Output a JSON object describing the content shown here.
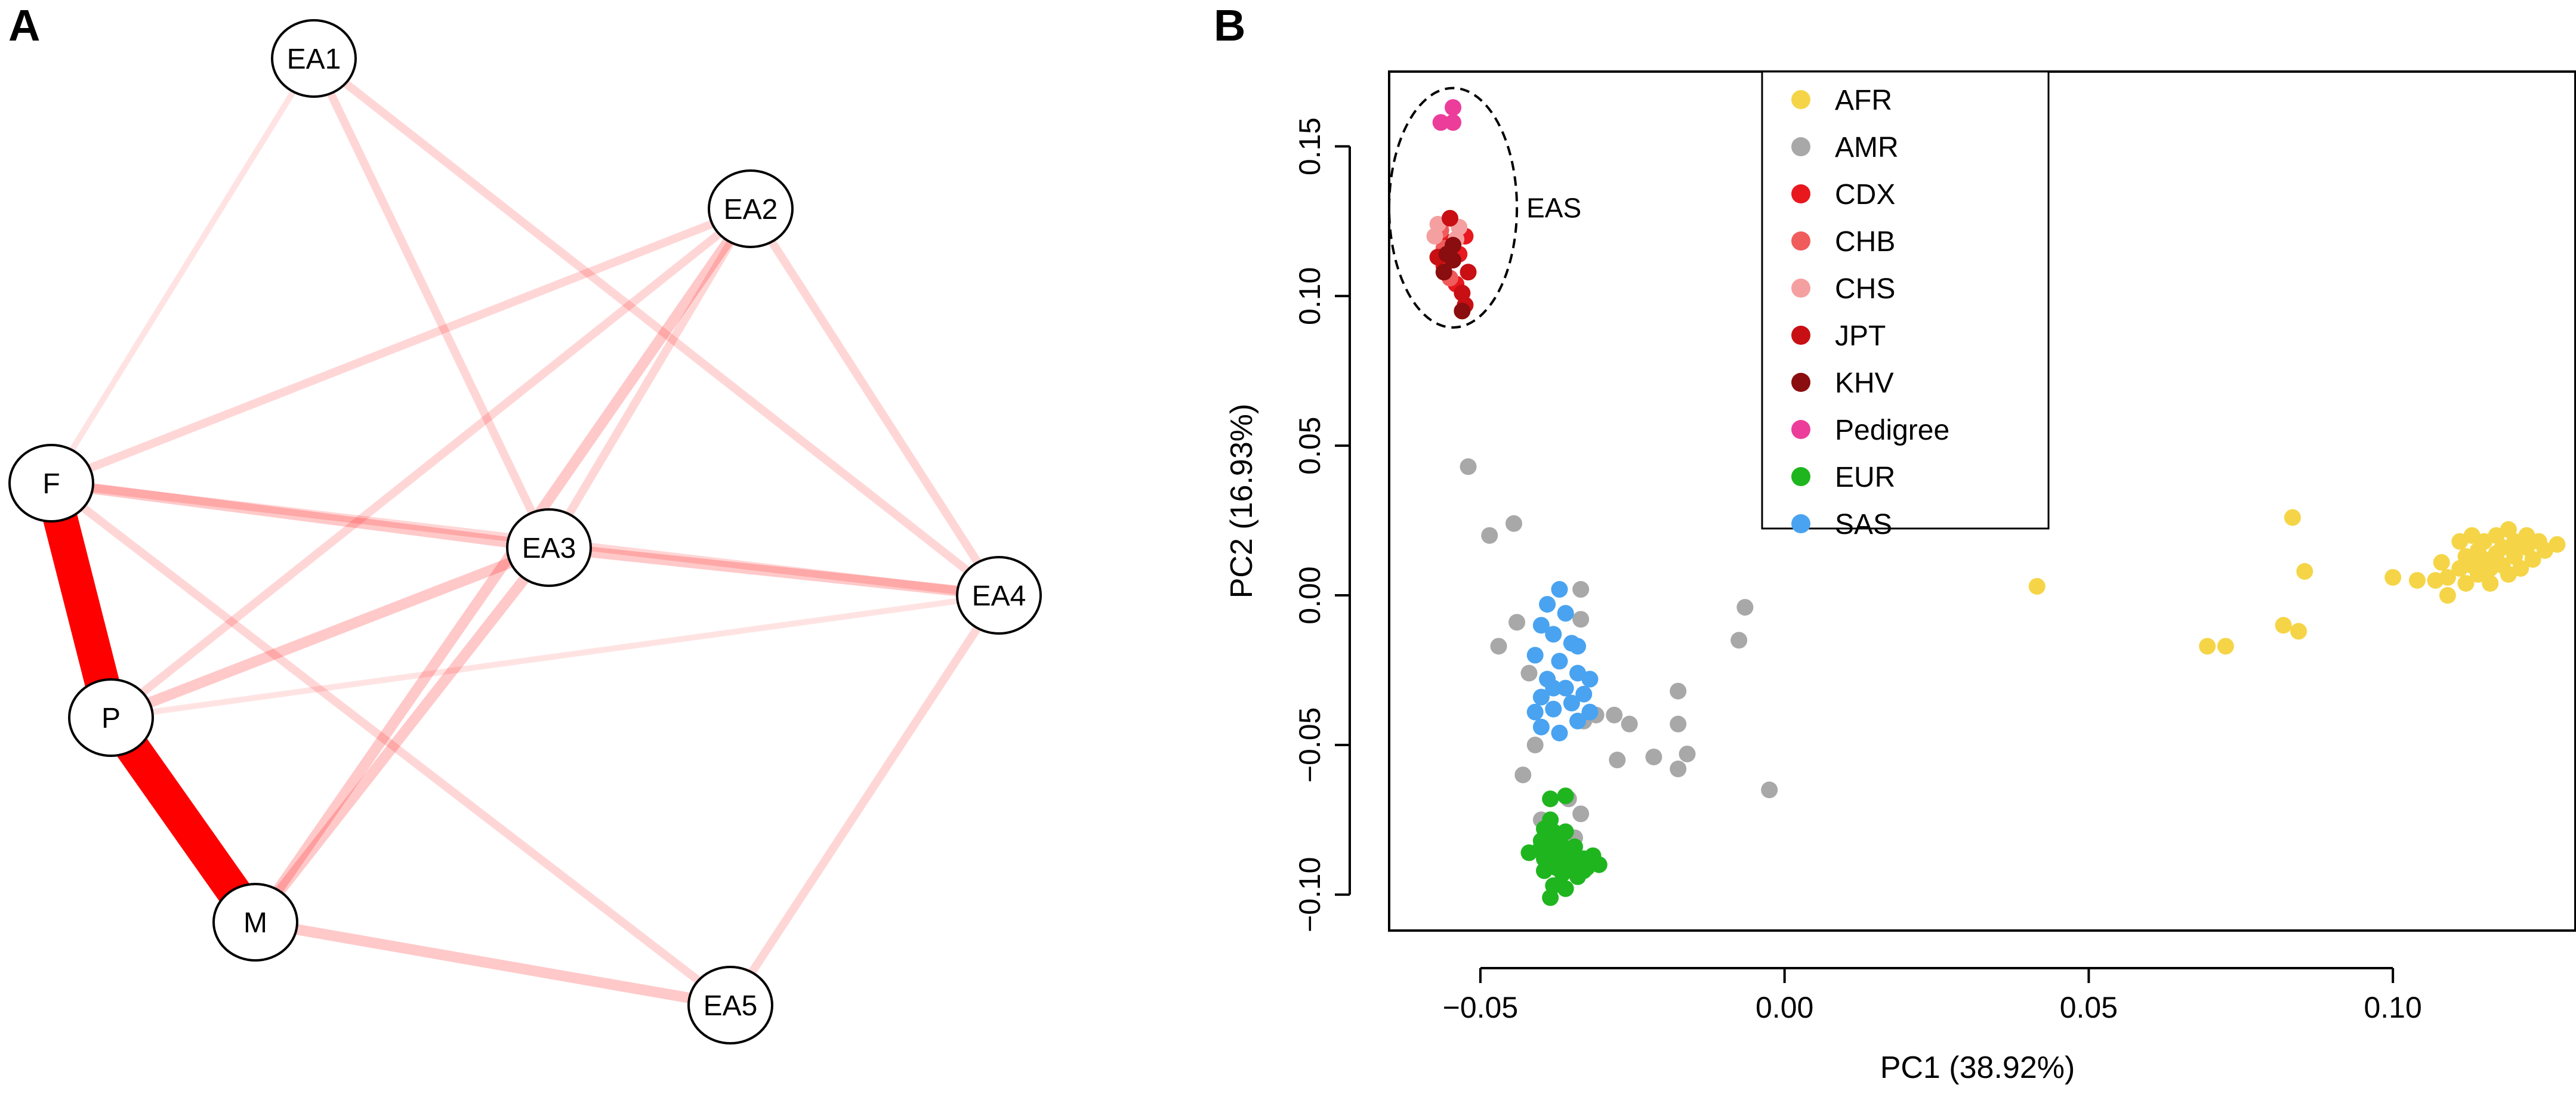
{
  "panel_labels": {
    "a": "A",
    "b": "B"
  },
  "network": {
    "nodes": [
      {
        "id": "EA1",
        "label": "EA1"
      },
      {
        "id": "EA2",
        "label": "EA2"
      },
      {
        "id": "F",
        "label": "F"
      },
      {
        "id": "EA3",
        "label": "EA3"
      },
      {
        "id": "EA4",
        "label": "EA4"
      },
      {
        "id": "P",
        "label": "P"
      },
      {
        "id": "M",
        "label": "M"
      },
      {
        "id": "EA5",
        "label": "EA5"
      }
    ],
    "edges": [
      {
        "from": "F",
        "to": "P",
        "weight": 10
      },
      {
        "from": "P",
        "to": "M",
        "weight": 10
      },
      {
        "from": "F",
        "to": "EA1",
        "weight": 1
      },
      {
        "from": "F",
        "to": "EA2",
        "weight": 2
      },
      {
        "from": "F",
        "to": "EA3",
        "weight": 3
      },
      {
        "from": "F",
        "to": "EA4",
        "weight": 2
      },
      {
        "from": "F",
        "to": "EA5",
        "weight": 2
      },
      {
        "from": "P",
        "to": "EA2",
        "weight": 2
      },
      {
        "from": "P",
        "to": "EA3",
        "weight": 3
      },
      {
        "from": "P",
        "to": "EA4",
        "weight": 1
      },
      {
        "from": "M",
        "to": "EA2",
        "weight": 3
      },
      {
        "from": "M",
        "to": "EA3",
        "weight": 3
      },
      {
        "from": "M",
        "to": "EA5",
        "weight": 3
      },
      {
        "from": "EA1",
        "to": "EA3",
        "weight": 2
      },
      {
        "from": "EA1",
        "to": "EA4",
        "weight": 2
      },
      {
        "from": "EA2",
        "to": "EA3",
        "weight": 2
      },
      {
        "from": "EA2",
        "to": "EA4",
        "weight": 2
      },
      {
        "from": "EA3",
        "to": "EA4",
        "weight": 3
      },
      {
        "from": "EA4",
        "to": "EA5",
        "weight": 2
      }
    ],
    "edge_color": "#ff0000"
  },
  "chart_data": {
    "type": "scatter",
    "xlabel": "PC1 (38.92%)",
    "ylabel": "PC2 (16.93%)",
    "xlim": [
      -0.065,
      0.13
    ],
    "ylim": [
      -0.112,
      0.175
    ],
    "xticks": [
      {
        "value": -0.05,
        "label": "−0.05"
      },
      {
        "value": 0.0,
        "label": "0.00"
      },
      {
        "value": 0.05,
        "label": "0.05"
      },
      {
        "value": 0.1,
        "label": "0.10"
      }
    ],
    "yticks": [
      {
        "value": -0.1,
        "label": "−0.10"
      },
      {
        "value": -0.05,
        "label": "−0.05"
      },
      {
        "value": 0.0,
        "label": "0.00"
      },
      {
        "value": 0.05,
        "label": "0.05"
      },
      {
        "value": 0.1,
        "label": "0.10"
      },
      {
        "value": 0.15,
        "label": "0.15"
      }
    ],
    "legend_position": "top-center",
    "annotation": {
      "text": "EAS",
      "center": [
        -0.0545,
        0.1295
      ],
      "rx": 0.0105,
      "ry": 0.04
    },
    "series": [
      {
        "name": "AFR",
        "color": "#f5d547",
        "points": [
          [
            0.0415,
            0.003
          ],
          [
            0.0695,
            -0.017
          ],
          [
            0.0725,
            -0.017
          ],
          [
            0.0835,
            0.026
          ],
          [
            0.082,
            -0.01
          ],
          [
            0.0845,
            -0.012
          ],
          [
            0.0855,
            0.008
          ],
          [
            0.1,
            0.006
          ],
          [
            0.104,
            0.005
          ],
          [
            0.107,
            0.005
          ],
          [
            0.108,
            0.011
          ],
          [
            0.109,
            0.0
          ],
          [
            0.109,
            0.006
          ],
          [
            0.111,
            0.009
          ],
          [
            0.111,
            0.018
          ],
          [
            0.112,
            0.004
          ],
          [
            0.112,
            0.013
          ],
          [
            0.113,
            0.01
          ],
          [
            0.113,
            0.02
          ],
          [
            0.114,
            0.007
          ],
          [
            0.114,
            0.015
          ],
          [
            0.115,
            0.012
          ],
          [
            0.115,
            0.018
          ],
          [
            0.116,
            0.009
          ],
          [
            0.116,
            0.004
          ],
          [
            0.117,
            0.014
          ],
          [
            0.117,
            0.02
          ],
          [
            0.118,
            0.01
          ],
          [
            0.118,
            0.016
          ],
          [
            0.119,
            0.007
          ],
          [
            0.119,
            0.022
          ],
          [
            0.12,
            0.013
          ],
          [
            0.12,
            0.018
          ],
          [
            0.121,
            0.009
          ],
          [
            0.122,
            0.016
          ],
          [
            0.122,
            0.02
          ],
          [
            0.123,
            0.012
          ],
          [
            0.124,
            0.018
          ],
          [
            0.125,
            0.015
          ],
          [
            0.127,
            0.017
          ]
        ]
      },
      {
        "name": "AMR",
        "color": "#a8a8a8",
        "points": [
          [
            -0.052,
            0.043
          ],
          [
            -0.0485,
            0.02
          ],
          [
            -0.0445,
            0.024
          ],
          [
            -0.047,
            -0.017
          ],
          [
            -0.044,
            -0.009
          ],
          [
            -0.042,
            -0.026
          ],
          [
            -0.041,
            -0.05
          ],
          [
            -0.043,
            -0.06
          ],
          [
            -0.04,
            -0.075
          ],
          [
            -0.0335,
            -0.008
          ],
          [
            -0.0335,
            0.002
          ],
          [
            -0.033,
            -0.042
          ],
          [
            -0.0335,
            -0.073
          ],
          [
            -0.031,
            -0.04
          ],
          [
            -0.028,
            -0.04
          ],
          [
            -0.0275,
            -0.055
          ],
          [
            -0.0255,
            -0.043
          ],
          [
            -0.0215,
            -0.054
          ],
          [
            -0.0175,
            -0.032
          ],
          [
            -0.0175,
            -0.043
          ],
          [
            -0.0175,
            -0.058
          ],
          [
            -0.016,
            -0.053
          ],
          [
            -0.0065,
            -0.004
          ],
          [
            -0.0075,
            -0.015
          ],
          [
            -0.0025,
            -0.065
          ],
          [
            -0.0345,
            -0.081
          ],
          [
            -0.036,
            -0.079
          ],
          [
            -0.0355,
            -0.068
          ]
        ]
      },
      {
        "name": "CDX",
        "color": "#e8181e",
        "points": [
          [
            -0.0555,
            0.118
          ],
          [
            -0.0535,
            0.114
          ],
          [
            -0.054,
            0.104
          ],
          [
            -0.0525,
            0.12
          ],
          [
            -0.056,
            0.11
          ]
        ]
      },
      {
        "name": "CHB",
        "color": "#f05b5b",
        "points": [
          [
            -0.0565,
            0.122
          ],
          [
            -0.0545,
            0.112
          ],
          [
            -0.056,
            0.116
          ],
          [
            -0.055,
            0.106
          ]
        ]
      },
      {
        "name": "CHS",
        "color": "#f5a0a0",
        "points": [
          [
            -0.057,
            0.124
          ],
          [
            -0.054,
            0.119
          ],
          [
            -0.0535,
            0.123
          ],
          [
            -0.0575,
            0.12
          ]
        ]
      },
      {
        "name": "JPT",
        "color": "#c80f14",
        "points": [
          [
            -0.055,
            0.126
          ],
          [
            -0.057,
            0.113
          ],
          [
            -0.0525,
            0.097
          ],
          [
            -0.052,
            0.108
          ],
          [
            -0.053,
            0.101
          ]
        ]
      },
      {
        "name": "KHV",
        "color": "#8a0d0f",
        "points": [
          [
            -0.0555,
            0.114
          ],
          [
            -0.0545,
            0.112
          ],
          [
            -0.053,
            0.095
          ],
          [
            -0.056,
            0.108
          ],
          [
            -0.0545,
            0.117
          ]
        ]
      },
      {
        "name": "Pedigree",
        "color": "#ec3d9b",
        "points": [
          [
            -0.0565,
            0.158
          ],
          [
            -0.0545,
            0.163
          ],
          [
            -0.0545,
            0.158
          ]
        ]
      },
      {
        "name": "EUR",
        "color": "#1fb51f",
        "points": [
          [
            -0.0385,
            -0.068
          ],
          [
            -0.036,
            -0.067
          ],
          [
            -0.0385,
            -0.075
          ],
          [
            -0.0395,
            -0.078
          ],
          [
            -0.036,
            -0.079
          ],
          [
            -0.0375,
            -0.082
          ],
          [
            -0.04,
            -0.084
          ],
          [
            -0.042,
            -0.086
          ],
          [
            -0.0385,
            -0.086
          ],
          [
            -0.0345,
            -0.084
          ],
          [
            -0.0395,
            -0.088
          ],
          [
            -0.037,
            -0.089
          ],
          [
            -0.035,
            -0.09
          ],
          [
            -0.033,
            -0.088
          ],
          [
            -0.0315,
            -0.087
          ],
          [
            -0.0305,
            -0.09
          ],
          [
            -0.0325,
            -0.091
          ],
          [
            -0.0395,
            -0.092
          ],
          [
            -0.0365,
            -0.093
          ],
          [
            -0.034,
            -0.094
          ],
          [
            -0.038,
            -0.097
          ],
          [
            -0.036,
            -0.098
          ],
          [
            -0.0385,
            -0.101
          ],
          [
            -0.0355,
            -0.085
          ],
          [
            -0.0375,
            -0.091
          ],
          [
            -0.035,
            -0.087
          ],
          [
            -0.04,
            -0.082
          ],
          [
            -0.038,
            -0.079
          ],
          [
            -0.0365,
            -0.084
          ],
          [
            -0.033,
            -0.092
          ]
        ]
      },
      {
        "name": "SAS",
        "color": "#49a3f0",
        "points": [
          [
            -0.037,
            0.002
          ],
          [
            -0.039,
            -0.003
          ],
          [
            -0.036,
            -0.006
          ],
          [
            -0.04,
            -0.01
          ],
          [
            -0.038,
            -0.013
          ],
          [
            -0.035,
            -0.016
          ],
          [
            -0.041,
            -0.02
          ],
          [
            -0.037,
            -0.022
          ],
          [
            -0.034,
            -0.017
          ],
          [
            -0.039,
            -0.028
          ],
          [
            -0.036,
            -0.031
          ],
          [
            -0.034,
            -0.026
          ],
          [
            -0.04,
            -0.034
          ],
          [
            -0.038,
            -0.038
          ],
          [
            -0.035,
            -0.036
          ],
          [
            -0.04,
            -0.044
          ],
          [
            -0.037,
            -0.046
          ],
          [
            -0.034,
            -0.042
          ],
          [
            -0.033,
            -0.033
          ],
          [
            -0.032,
            -0.028
          ],
          [
            -0.032,
            -0.039
          ],
          [
            -0.038,
            -0.031
          ],
          [
            -0.041,
            -0.039
          ]
        ]
      }
    ]
  }
}
